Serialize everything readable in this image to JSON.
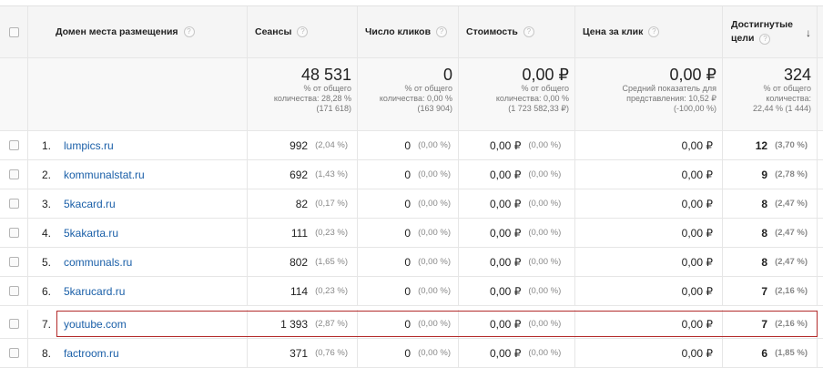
{
  "headers": {
    "domain": "Домен места размещения",
    "sessions": "Сеансы",
    "clicks": "Число кликов",
    "cost": "Стоимость",
    "cpc": "Цена за клик",
    "goals_line1": "Достигнутые",
    "goals_line2": "цели",
    "help": "?",
    "sort": "↓"
  },
  "totals": {
    "sessions": {
      "value": "48 531",
      "l1": "% от общего",
      "l2": "количества: 28,28 %",
      "l3": "(171 618)"
    },
    "clicks": {
      "value": "0",
      "l1": "% от общего",
      "l2": "количества: 0,00 %",
      "l3": "(163 904)"
    },
    "cost": {
      "value": "0,00 ₽",
      "l1": "% от общего",
      "l2": "количества: 0,00 %",
      "l3": "(1 723 582,33 ₽)"
    },
    "cpc": {
      "value": "0,00 ₽",
      "l1": "Средний показатель для",
      "l2": "представления: 10,52 ₽",
      "l3": "(-100,00 %)"
    },
    "goals": {
      "value": "324",
      "l1": "% от общего",
      "l2": "количества:",
      "l3": "22,44 % (1 444)"
    }
  },
  "rows": [
    {
      "idx": "1.",
      "domain": "lumpics.ru",
      "sessions": "992",
      "sessions_pct": "(2,04 %)",
      "clicks": "0",
      "clicks_pct": "(0,00 %)",
      "cost": "0,00 ₽",
      "cost_pct": "(0,00 %)",
      "cpc": "0,00 ₽",
      "goals": "12",
      "goals_pct": "(3,70 %)"
    },
    {
      "idx": "2.",
      "domain": "kommunalstat.ru",
      "sessions": "692",
      "sessions_pct": "(1,43 %)",
      "clicks": "0",
      "clicks_pct": "(0,00 %)",
      "cost": "0,00 ₽",
      "cost_pct": "(0,00 %)",
      "cpc": "0,00 ₽",
      "goals": "9",
      "goals_pct": "(2,78 %)"
    },
    {
      "idx": "3.",
      "domain": "5kacard.ru",
      "sessions": "82",
      "sessions_pct": "(0,17 %)",
      "clicks": "0",
      "clicks_pct": "(0,00 %)",
      "cost": "0,00 ₽",
      "cost_pct": "(0,00 %)",
      "cpc": "0,00 ₽",
      "goals": "8",
      "goals_pct": "(2,47 %)"
    },
    {
      "idx": "4.",
      "domain": "5kakarta.ru",
      "sessions": "111",
      "sessions_pct": "(0,23 %)",
      "clicks": "0",
      "clicks_pct": "(0,00 %)",
      "cost": "0,00 ₽",
      "cost_pct": "(0,00 %)",
      "cpc": "0,00 ₽",
      "goals": "8",
      "goals_pct": "(2,47 %)"
    },
    {
      "idx": "5.",
      "domain": "communals.ru",
      "sessions": "802",
      "sessions_pct": "(1,65 %)",
      "clicks": "0",
      "clicks_pct": "(0,00 %)",
      "cost": "0,00 ₽",
      "cost_pct": "(0,00 %)",
      "cpc": "0,00 ₽",
      "goals": "8",
      "goals_pct": "(2,47 %)"
    },
    {
      "idx": "6.",
      "domain": "5karucard.ru",
      "sessions": "114",
      "sessions_pct": "(0,23 %)",
      "clicks": "0",
      "clicks_pct": "(0,00 %)",
      "cost": "0,00 ₽",
      "cost_pct": "(0,00 %)",
      "cpc": "0,00 ₽",
      "goals": "7",
      "goals_pct": "(2,16 %)"
    },
    {
      "idx": "7.",
      "domain": "youtube.com",
      "sessions": "1 393",
      "sessions_pct": "(2,87 %)",
      "clicks": "0",
      "clicks_pct": "(0,00 %)",
      "cost": "0,00 ₽",
      "cost_pct": "(0,00 %)",
      "cpc": "0,00 ₽",
      "goals": "7",
      "goals_pct": "(2,16 %)"
    },
    {
      "idx": "8.",
      "domain": "factroom.ru",
      "sessions": "371",
      "sessions_pct": "(0,76 %)",
      "clicks": "0",
      "clicks_pct": "(0,00 %)",
      "cost": "0,00 ₽",
      "cost_pct": "(0,00 %)",
      "cpc": "0,00 ₽",
      "goals": "6",
      "goals_pct": "(1,85 %)"
    }
  ],
  "colors": {
    "link": "#1a5fa8",
    "highlight": "#b32b2b"
  }
}
